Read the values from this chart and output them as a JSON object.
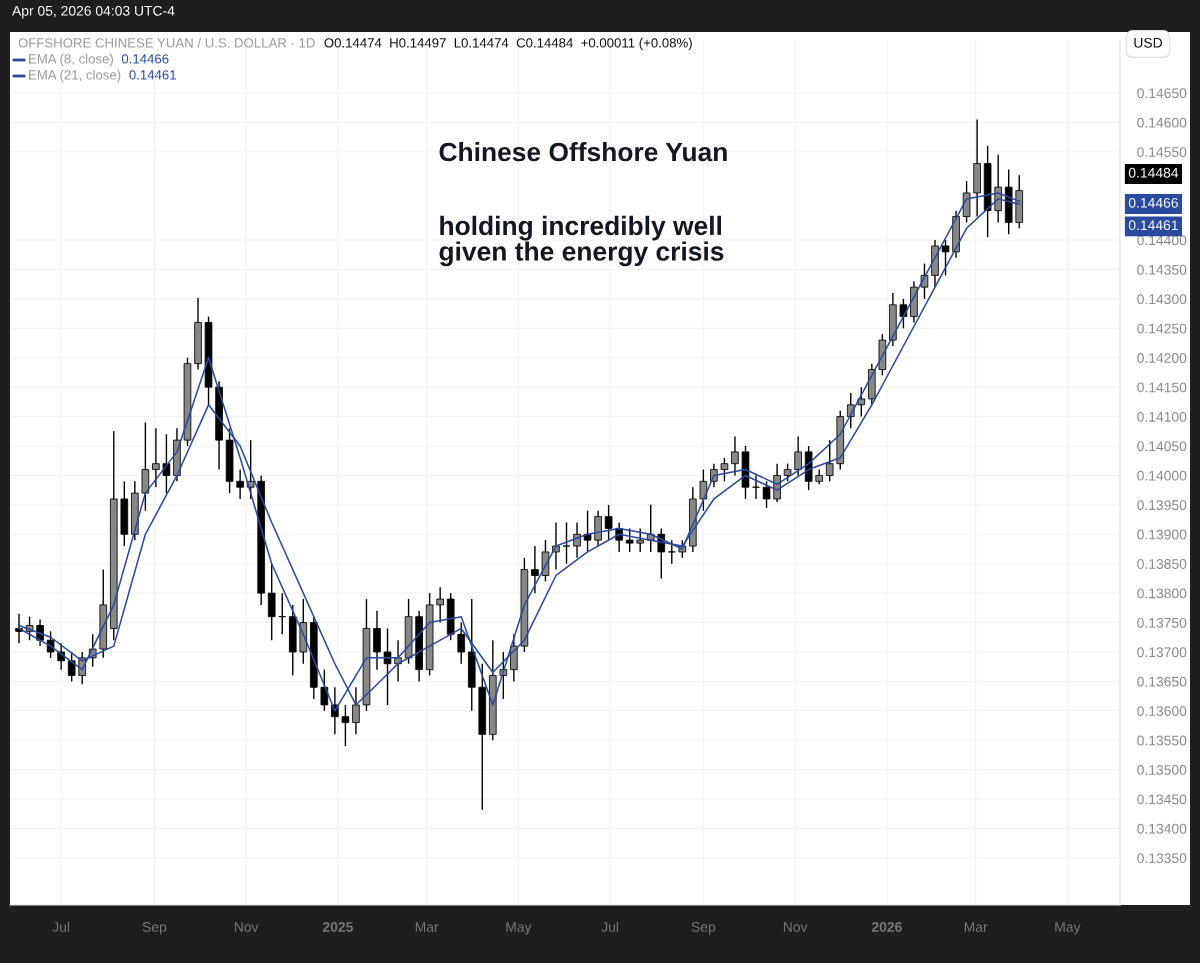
{
  "chart_data": {
    "type": "candlestick",
    "x": [
      "2024-06-03",
      "2024-06-10",
      "2024-06-17",
      "2024-06-24",
      "2024-07-01",
      "2024-07-08",
      "2024-07-15",
      "2024-07-22",
      "2024-07-29",
      "2024-08-05",
      "2024-08-12",
      "2024-08-19",
      "2024-08-26",
      "2024-09-02",
      "2024-09-09",
      "2024-09-16",
      "2024-09-23",
      "2024-09-30",
      "2024-10-07",
      "2024-10-14",
      "2024-10-21",
      "2024-10-28",
      "2024-11-04",
      "2024-11-11",
      "2024-11-18",
      "2024-11-25",
      "2024-12-02",
      "2024-12-09",
      "2024-12-16",
      "2024-12-23",
      "2024-12-30",
      "2025-01-06",
      "2025-01-13",
      "2025-01-20",
      "2025-01-27",
      "2025-02-03",
      "2025-02-10",
      "2025-02-17",
      "2025-02-24",
      "2025-03-03",
      "2025-03-10",
      "2025-03-17",
      "2025-03-24",
      "2025-03-31",
      "2025-04-07",
      "2025-04-14",
      "2025-04-21",
      "2025-04-28",
      "2025-05-05",
      "2025-05-12",
      "2025-05-19",
      "2025-05-26",
      "2025-06-02",
      "2025-06-09",
      "2025-06-16",
      "2025-06-23",
      "2025-06-30",
      "2025-07-07",
      "2025-07-14",
      "2025-07-21",
      "2025-07-28",
      "2025-08-04",
      "2025-08-11",
      "2025-08-18",
      "2025-08-25",
      "2025-09-01",
      "2025-09-08",
      "2025-09-15",
      "2025-09-22",
      "2025-09-29",
      "2025-10-06",
      "2025-10-13",
      "2025-10-20",
      "2025-10-27",
      "2025-11-03",
      "2025-11-10",
      "2025-11-17",
      "2025-11-24",
      "2025-12-01",
      "2025-12-08",
      "2025-12-15",
      "2025-12-22",
      "2025-12-29",
      "2026-01-05",
      "2026-01-12",
      "2026-01-19",
      "2026-01-26",
      "2026-02-02",
      "2026-02-09",
      "2026-02-16",
      "2026-02-23",
      "2026-03-02",
      "2026-03-09",
      "2026-03-16",
      "2026-03-23",
      "2026-03-30"
    ],
    "ohlc": [
      [
        0.1374,
        0.13765,
        0.13715,
        0.13735
      ],
      [
        0.13735,
        0.1376,
        0.1372,
        0.13745
      ],
      [
        0.13745,
        0.13755,
        0.1371,
        0.1372
      ],
      [
        0.1372,
        0.13735,
        0.1369,
        0.137
      ],
      [
        0.137,
        0.13715,
        0.1367,
        0.13685
      ],
      [
        0.13685,
        0.137,
        0.1365,
        0.1366
      ],
      [
        0.1366,
        0.137,
        0.13645,
        0.1369
      ],
      [
        0.1369,
        0.1373,
        0.13675,
        0.13705
      ],
      [
        0.13705,
        0.1384,
        0.1369,
        0.1378
      ],
      [
        0.1374,
        0.14075,
        0.1372,
        0.1396
      ],
      [
        0.1396,
        0.1399,
        0.1388,
        0.139
      ],
      [
        0.139,
        0.1399,
        0.1389,
        0.1397
      ],
      [
        0.1397,
        0.1409,
        0.1394,
        0.1401
      ],
      [
        0.1401,
        0.1408,
        0.1398,
        0.1402
      ],
      [
        0.1402,
        0.1407,
        0.1397,
        0.14
      ],
      [
        0.14,
        0.1408,
        0.1399,
        0.1406
      ],
      [
        0.1406,
        0.142,
        0.1405,
        0.1419
      ],
      [
        0.1419,
        0.14302,
        0.1418,
        0.1426
      ],
      [
        0.1426,
        0.1427,
        0.1412,
        0.1415
      ],
      [
        0.1415,
        0.1416,
        0.1401,
        0.1406
      ],
      [
        0.1406,
        0.1408,
        0.1397,
        0.1399
      ],
      [
        0.1399,
        0.1401,
        0.1396,
        0.1398
      ],
      [
        0.1398,
        0.1406,
        0.1396,
        0.1399
      ],
      [
        0.1399,
        0.14,
        0.1378,
        0.138
      ],
      [
        0.138,
        0.1385,
        0.1372,
        0.1376
      ],
      [
        0.1376,
        0.138,
        0.1373,
        0.1376
      ],
      [
        0.1376,
        0.1378,
        0.1366,
        0.137
      ],
      [
        0.137,
        0.1379,
        0.1368,
        0.1375
      ],
      [
        0.1375,
        0.1376,
        0.1362,
        0.1364
      ],
      [
        0.1364,
        0.1367,
        0.136,
        0.1361
      ],
      [
        0.1361,
        0.1364,
        0.1356,
        0.1359
      ],
      [
        0.1359,
        0.1361,
        0.1354,
        0.1358
      ],
      [
        0.1358,
        0.1364,
        0.1356,
        0.1361
      ],
      [
        0.1361,
        0.1379,
        0.136,
        0.1374
      ],
      [
        0.1374,
        0.1377,
        0.1367,
        0.137
      ],
      [
        0.137,
        0.1374,
        0.1361,
        0.1368
      ],
      [
        0.1368,
        0.1372,
        0.1365,
        0.1369
      ],
      [
        0.1369,
        0.1379,
        0.1368,
        0.1376
      ],
      [
        0.1376,
        0.1377,
        0.1365,
        0.1367
      ],
      [
        0.1367,
        0.138,
        0.1366,
        0.1378
      ],
      [
        0.1378,
        0.1381,
        0.1375,
        0.1379
      ],
      [
        0.1379,
        0.138,
        0.1372,
        0.1373
      ],
      [
        0.1373,
        0.1375,
        0.1368,
        0.137
      ],
      [
        0.137,
        0.1379,
        0.136,
        0.1364
      ],
      [
        0.1364,
        0.1368,
        0.13432,
        0.1356
      ],
      [
        0.1356,
        0.1372,
        0.1355,
        0.1366
      ],
      [
        0.1366,
        0.137,
        0.1362,
        0.1367
      ],
      [
        0.1367,
        0.1373,
        0.1365,
        0.1371
      ],
      [
        0.1371,
        0.1386,
        0.137,
        0.1384
      ],
      [
        0.1384,
        0.1388,
        0.138,
        0.1383
      ],
      [
        0.1383,
        0.1389,
        0.1382,
        0.1387
      ],
      [
        0.1387,
        0.1392,
        0.1384,
        0.1388
      ],
      [
        0.1388,
        0.1392,
        0.1385,
        0.1388
      ],
      [
        0.1388,
        0.1392,
        0.1386,
        0.139
      ],
      [
        0.139,
        0.1394,
        0.1387,
        0.1389
      ],
      [
        0.1389,
        0.1394,
        0.1388,
        0.1393
      ],
      [
        0.1393,
        0.1395,
        0.1389,
        0.1391
      ],
      [
        0.1391,
        0.1392,
        0.1387,
        0.1389
      ],
      [
        0.1389,
        0.1391,
        0.1387,
        0.13885
      ],
      [
        0.13885,
        0.1391,
        0.1387,
        0.1389
      ],
      [
        0.1389,
        0.1395,
        0.1387,
        0.139
      ],
      [
        0.139,
        0.1391,
        0.13825,
        0.1387
      ],
      [
        0.1387,
        0.1389,
        0.1385,
        0.1387
      ],
      [
        0.1387,
        0.1389,
        0.1386,
        0.1388
      ],
      [
        0.1388,
        0.1398,
        0.1387,
        0.1396
      ],
      [
        0.1396,
        0.1401,
        0.1394,
        0.1399
      ],
      [
        0.1399,
        0.1402,
        0.1398,
        0.1401
      ],
      [
        0.1401,
        0.1403,
        0.1399,
        0.1402
      ],
      [
        0.1402,
        0.14066,
        0.14,
        0.1404
      ],
      [
        0.1404,
        0.1405,
        0.1396,
        0.1398
      ],
      [
        0.1398,
        0.14,
        0.1396,
        0.1398
      ],
      [
        0.1398,
        0.1399,
        0.13945,
        0.1396
      ],
      [
        0.1396,
        0.1402,
        0.13955,
        0.14
      ],
      [
        0.14,
        0.1402,
        0.1399,
        0.1401
      ],
      [
        0.1401,
        0.14066,
        0.14,
        0.1404
      ],
      [
        0.1404,
        0.1405,
        0.13975,
        0.1399
      ],
      [
        0.1399,
        0.1401,
        0.13985,
        0.14
      ],
      [
        0.14,
        0.1406,
        0.1399,
        0.1402
      ],
      [
        0.1402,
        0.1411,
        0.1401,
        0.141
      ],
      [
        0.141,
        0.1414,
        0.1408,
        0.1412
      ],
      [
        0.1412,
        0.1415,
        0.141,
        0.1413
      ],
      [
        0.1413,
        0.1419,
        0.1412,
        0.1418
      ],
      [
        0.1418,
        0.1424,
        0.1417,
        0.1423
      ],
      [
        0.1423,
        0.1431,
        0.1422,
        0.1429
      ],
      [
        0.1429,
        0.143,
        0.1425,
        0.1427
      ],
      [
        0.1427,
        0.1433,
        0.1426,
        0.1432
      ],
      [
        0.1432,
        0.1436,
        0.143,
        0.1434
      ],
      [
        0.1434,
        0.144,
        0.1432,
        0.1439
      ],
      [
        0.1439,
        0.144,
        0.1434,
        0.1438
      ],
      [
        0.1438,
        0.1445,
        0.1437,
        0.1444
      ],
      [
        0.1444,
        0.145,
        0.1443,
        0.1448
      ],
      [
        0.1448,
        0.14605,
        0.1444,
        0.1453
      ],
      [
        0.1453,
        0.1456,
        0.14405,
        0.1445
      ],
      [
        0.1445,
        0.14545,
        0.1443,
        0.1449
      ],
      [
        0.1449,
        0.1452,
        0.1441,
        0.1443
      ],
      [
        0.1443,
        0.1451,
        0.1442,
        0.14484
      ]
    ],
    "color": "#000000",
    "series": [
      {
        "name": "EMA (8, close)",
        "type": "line",
        "color": "#2a4aa0",
        "x": [
          "2024-06-03",
          "2024-06-24",
          "2024-07-15",
          "2024-08-05",
          "2024-08-26",
          "2024-09-16",
          "2024-10-07",
          "2024-10-28",
          "2024-11-18",
          "2024-12-09",
          "2024-12-30",
          "2025-01-20",
          "2025-02-10",
          "2025-03-03",
          "2025-03-24",
          "2025-04-14",
          "2025-05-05",
          "2025-05-26",
          "2025-06-16",
          "2025-07-07",
          "2025-07-28",
          "2025-08-18",
          "2025-09-08",
          "2025-09-29",
          "2025-10-20",
          "2025-11-10",
          "2025-12-01",
          "2025-12-22",
          "2026-01-12",
          "2026-02-02",
          "2026-02-23",
          "2026-03-16",
          "2026-03-30"
        ],
        "values": [
          0.1374,
          0.1371,
          0.1367,
          0.1378,
          0.1397,
          0.1404,
          0.142,
          0.1403,
          0.1385,
          0.1373,
          0.136,
          0.1369,
          0.1369,
          0.1375,
          0.1376,
          0.1361,
          0.1378,
          0.1388,
          0.139,
          0.1391,
          0.139,
          0.13875,
          0.14,
          0.1401,
          0.13985,
          0.1402,
          0.1407,
          0.1417,
          0.1427,
          0.1437,
          0.1447,
          0.1448,
          0.14466
        ]
      },
      {
        "name": "EMA (21, close)",
        "type": "line",
        "color": "#2a4aa0",
        "x": [
          "2024-06-03",
          "2024-06-24",
          "2024-07-15",
          "2024-08-05",
          "2024-08-26",
          "2024-09-16",
          "2024-10-07",
          "2024-10-28",
          "2024-11-18",
          "2024-12-09",
          "2024-12-30",
          "2025-01-13",
          "2025-02-10",
          "2025-03-03",
          "2025-03-24",
          "2025-04-14",
          "2025-05-05",
          "2025-05-26",
          "2025-06-16",
          "2025-07-07",
          "2025-07-28",
          "2025-08-18",
          "2025-09-08",
          "2025-09-29",
          "2025-10-20",
          "2025-11-10",
          "2025-12-01",
          "2025-12-22",
          "2026-01-12",
          "2026-02-02",
          "2026-02-23",
          "2026-03-16",
          "2026-03-30"
        ],
        "values": [
          0.13745,
          0.13725,
          0.13685,
          0.1371,
          0.139,
          0.14,
          0.1412,
          0.1405,
          0.1392,
          0.138,
          0.1368,
          0.1361,
          0.1368,
          0.1371,
          0.1374,
          0.13665,
          0.1372,
          0.1383,
          0.1387,
          0.139,
          0.1389,
          0.1388,
          0.1396,
          0.14,
          0.13975,
          0.1401,
          0.1403,
          0.1412,
          0.1422,
          0.1432,
          0.1442,
          0.1447,
          0.14461
        ]
      }
    ],
    "xlim": [
      "2024-05-28",
      "2026-06-05"
    ],
    "xticks": [
      {
        "value": "2024-07-01",
        "label": "Jul"
      },
      {
        "value": "2024-09-01",
        "label": "Sep"
      },
      {
        "value": "2024-11-01",
        "label": "Nov"
      },
      {
        "value": "2025-01-01",
        "label": "2025"
      },
      {
        "value": "2025-03-01",
        "label": "Mar"
      },
      {
        "value": "2025-05-01",
        "label": "May"
      },
      {
        "value": "2025-07-01",
        "label": "Jul"
      },
      {
        "value": "2025-09-01",
        "label": "Sep"
      },
      {
        "value": "2025-11-01",
        "label": "Nov"
      },
      {
        "value": "2026-01-01",
        "label": "2026"
      },
      {
        "value": "2026-03-01",
        "label": "Mar"
      },
      {
        "value": "2026-05-01",
        "label": "May"
      }
    ],
    "ylim": [
      0.1327,
      0.1474
    ],
    "yticks": [
      {
        "value": 0.1335,
        "label": "0.13350"
      },
      {
        "value": 0.134,
        "label": "0.13400"
      },
      {
        "value": 0.1345,
        "label": "0.13450"
      },
      {
        "value": 0.135,
        "label": "0.13500"
      },
      {
        "value": 0.1355,
        "label": "0.13550"
      },
      {
        "value": 0.136,
        "label": "0.13600"
      },
      {
        "value": 0.1365,
        "label": "0.13650"
      },
      {
        "value": 0.137,
        "label": "0.13700"
      },
      {
        "value": 0.1375,
        "label": "0.13750"
      },
      {
        "value": 0.138,
        "label": "0.13800"
      },
      {
        "value": 0.1385,
        "label": "0.13850"
      },
      {
        "value": 0.139,
        "label": "0.13900"
      },
      {
        "value": 0.1395,
        "label": "0.13950"
      },
      {
        "value": 0.14,
        "label": "0.14000"
      },
      {
        "value": 0.1405,
        "label": "0.14050"
      },
      {
        "value": 0.141,
        "label": "0.14100"
      },
      {
        "value": 0.1415,
        "label": "0.14150"
      },
      {
        "value": 0.142,
        "label": "0.14200"
      },
      {
        "value": 0.1425,
        "label": "0.14250"
      },
      {
        "value": 0.143,
        "label": "0.14300"
      },
      {
        "value": 0.1435,
        "label": "0.14350"
      },
      {
        "value": 0.144,
        "label": "0.14400"
      },
      {
        "value": 0.1455,
        "label": "0.14550"
      },
      {
        "value": 0.146,
        "label": "0.14600"
      },
      {
        "value": 0.1465,
        "label": "0.14650"
      }
    ],
    "grid": true,
    "legend": "top left",
    "annotations": [
      "Apr 05, 2026 04:03 UTC-4",
      "OFFSHORE CHINESE YUAN / U.S. DOLLAR · 1D",
      "O0.14474  H0.14497  L0.14474  C0.14484  +0.00011 (+0.08%)",
      "USD",
      "Chinese Offshore Yuan",
      "holding incredibly well\ngiven the energy crisis",
      "0.14484",
      "0.14466",
      "0.14461"
    ]
  }
}
